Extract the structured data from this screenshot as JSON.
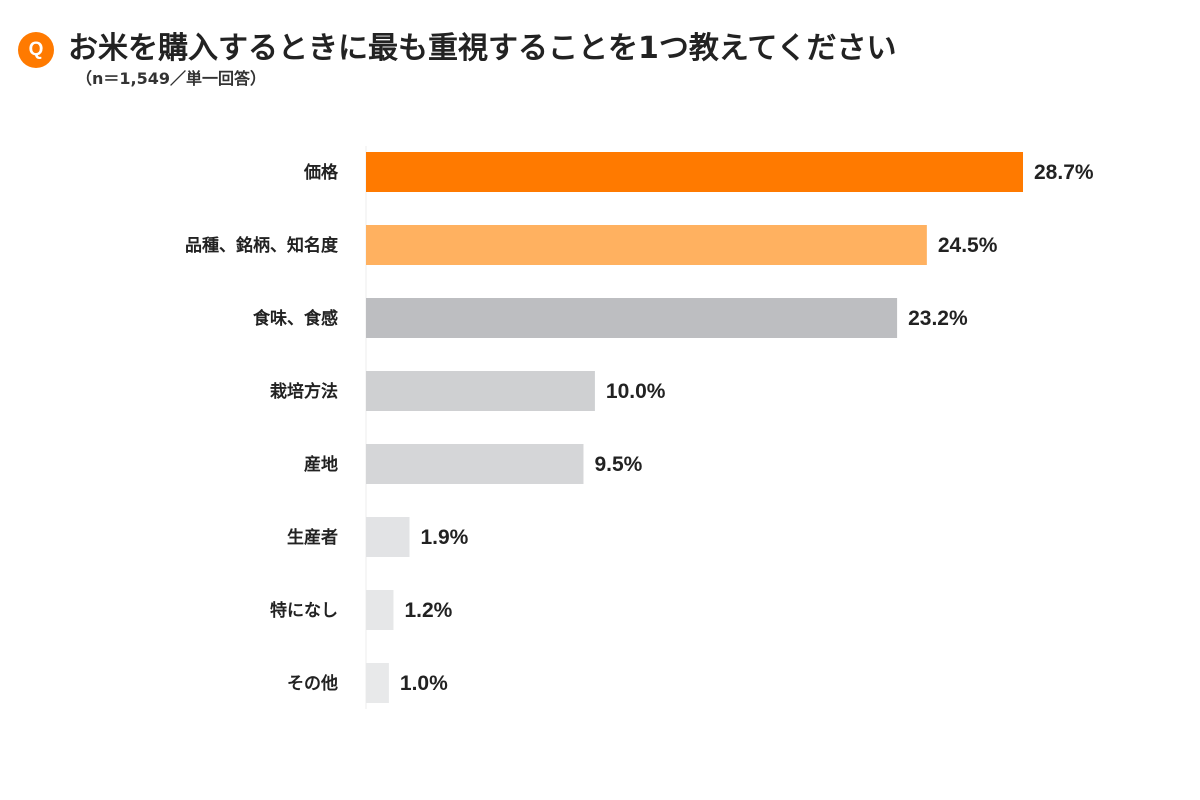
{
  "header": {
    "q_label": "Q",
    "q_color": "#FF7A00",
    "title": "お米を購入するときに最も重視することを1つ教えてください",
    "subtitle": "（n＝1,549／単一回答）"
  },
  "chart_data": {
    "type": "bar",
    "orientation": "horizontal",
    "categories": [
      "価格",
      "品種、銘柄、知名度",
      "食味、食感",
      "栽培方法",
      "産地",
      "生産者",
      "特になし",
      "その他"
    ],
    "values": [
      28.7,
      24.5,
      23.2,
      10.0,
      9.5,
      1.9,
      1.2,
      1.0
    ],
    "value_labels": [
      "28.7%",
      "24.5%",
      "23.2%",
      "10.0%",
      "9.5%",
      "1.9%",
      "1.2%",
      "1.0%"
    ],
    "bar_colors": [
      "#FF7A00",
      "#FFB160",
      "#BDBEC1",
      "#CFD0D2",
      "#D5D6D8",
      "#E2E3E5",
      "#E6E7E8",
      "#E8E9EA"
    ],
    "unit": "%",
    "xlim": [
      0,
      28.7
    ],
    "grid": false,
    "legend": "none"
  }
}
